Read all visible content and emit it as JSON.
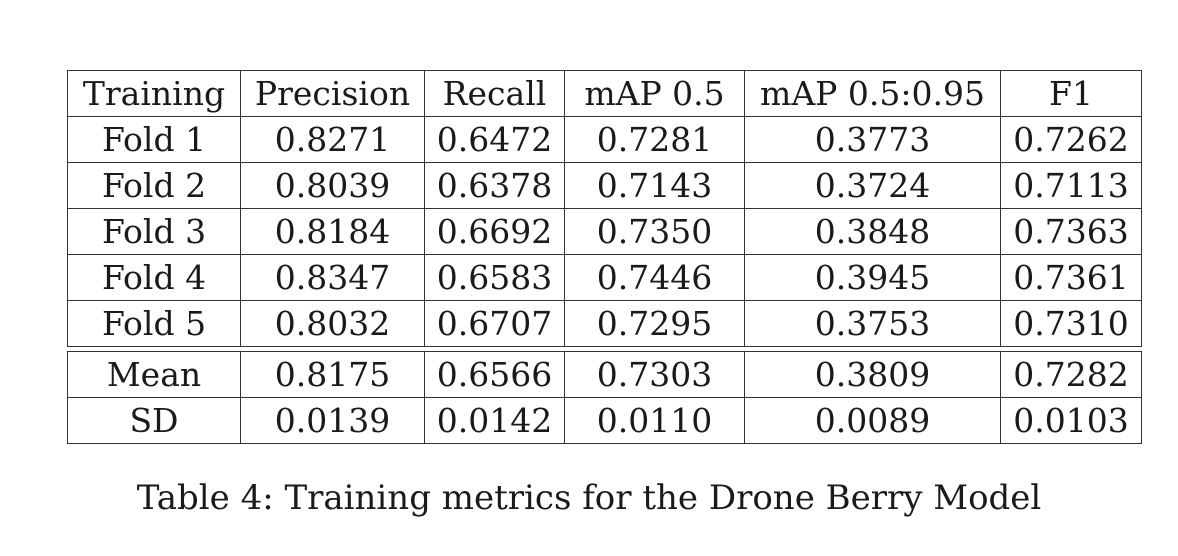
{
  "table": {
    "headers": [
      "Training",
      "Precision",
      "Recall",
      "mAP 0.5",
      "mAP 0.5:0.95",
      "F1"
    ],
    "folds": [
      [
        "Fold 1",
        "0.8271",
        "0.6472",
        "0.7281",
        "0.3773",
        "0.7262"
      ],
      [
        "Fold 2",
        "0.8039",
        "0.6378",
        "0.7143",
        "0.3724",
        "0.7113"
      ],
      [
        "Fold 3",
        "0.8184",
        "0.6692",
        "0.7350",
        "0.3848",
        "0.7363"
      ],
      [
        "Fold 4",
        "0.8347",
        "0.6583",
        "0.7446",
        "0.3945",
        "0.7361"
      ],
      [
        "Fold 5",
        "0.8032",
        "0.6707",
        "0.7295",
        "0.3753",
        "0.7310"
      ]
    ],
    "summary": [
      [
        "Mean",
        "0.8175",
        "0.6566",
        "0.7303",
        "0.3809",
        "0.7282"
      ],
      [
        "SD",
        "0.0139",
        "0.0142",
        "0.0110",
        "0.0089",
        "0.0103"
      ]
    ]
  },
  "caption": "Table 4: Training metrics for the Drone Berry Model"
}
